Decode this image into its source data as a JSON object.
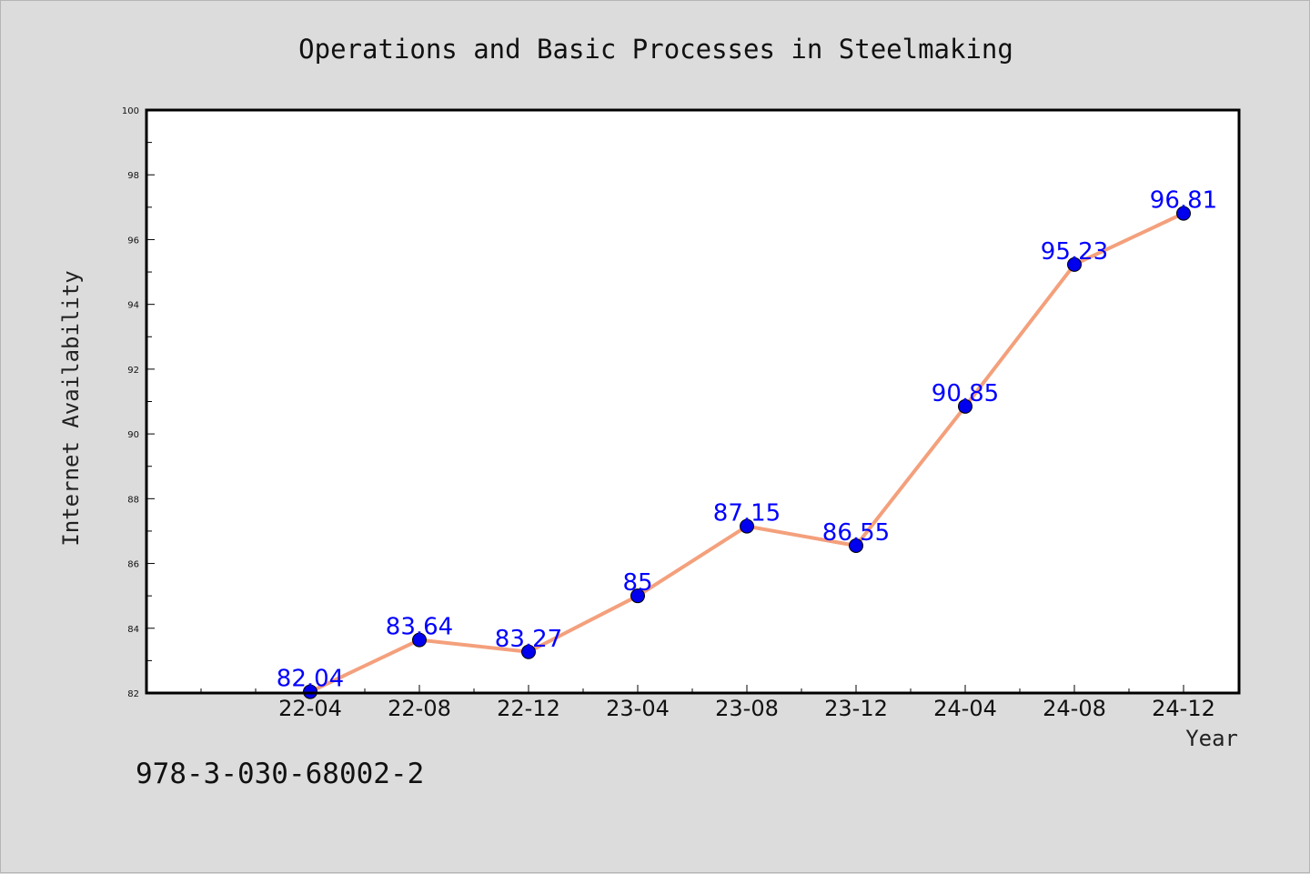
{
  "chart_data": {
    "type": "line",
    "title": "Operations and Basic Processes in Steelmaking",
    "xlabel": "Year",
    "ylabel": "Internet Availability",
    "categories": [
      "22-04",
      "22-08",
      "22-12",
      "23-04",
      "23-08",
      "23-12",
      "24-04",
      "24-08",
      "24-12"
    ],
    "series": [
      {
        "values": [
          82.04,
          83.64,
          83.27,
          85,
          87.15,
          86.55,
          90.85,
          95.23,
          96.81
        ],
        "labels": [
          "82.04",
          "83.64",
          "83.27",
          "85",
          "87.15",
          "86.55",
          "90.85",
          "95.23",
          "96.81"
        ],
        "line_color": "#f4a07c",
        "marker_color": "#0000ee",
        "label_color": "#0000ff"
      }
    ],
    "ylim": [
      82,
      100
    ],
    "yticks": [
      "82",
      "84",
      "86",
      "88",
      "90",
      "92",
      "94",
      "96",
      "98",
      "100"
    ],
    "grid": false,
    "plot_background": "#ffffff",
    "page_background": "#dcdcdc"
  },
  "footer": {
    "code": "978-3-030-68002-2"
  }
}
